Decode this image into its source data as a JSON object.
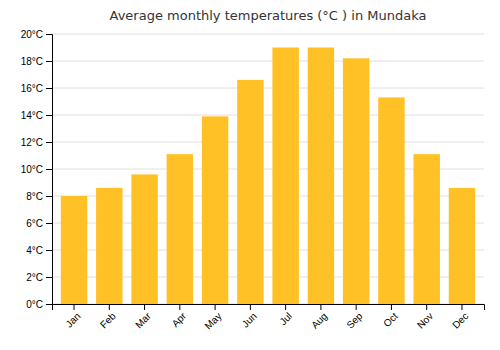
{
  "chart_data": {
    "type": "bar",
    "title": "Average monthly temperatures (°C ) in Mundaka",
    "categories": [
      "Jan",
      "Feb",
      "Mar",
      "Apr",
      "May",
      "Jun",
      "Jul",
      "Aug",
      "Sep",
      "Oct",
      "Nov",
      "Dec"
    ],
    "values": [
      8.0,
      8.6,
      9.6,
      11.1,
      13.9,
      16.6,
      19.0,
      19.0,
      18.2,
      15.3,
      11.1,
      8.6
    ],
    "color": "#FFC125",
    "ylim": [
      0,
      20
    ],
    "yticks": [
      {
        "value": 0,
        "label": "0°C"
      },
      {
        "value": 2,
        "label": "2°C"
      },
      {
        "value": 4,
        "label": "4°C"
      },
      {
        "value": 6,
        "label": "6°C"
      },
      {
        "value": 8,
        "label": "8°C"
      },
      {
        "value": 10,
        "label": "10°C"
      },
      {
        "value": 12,
        "label": "12°C"
      },
      {
        "value": 14,
        "label": "14°C"
      },
      {
        "value": 16,
        "label": "16°C"
      },
      {
        "value": 18,
        "label": "18°C"
      },
      {
        "value": 20,
        "label": "20°C"
      }
    ],
    "grid": true
  }
}
